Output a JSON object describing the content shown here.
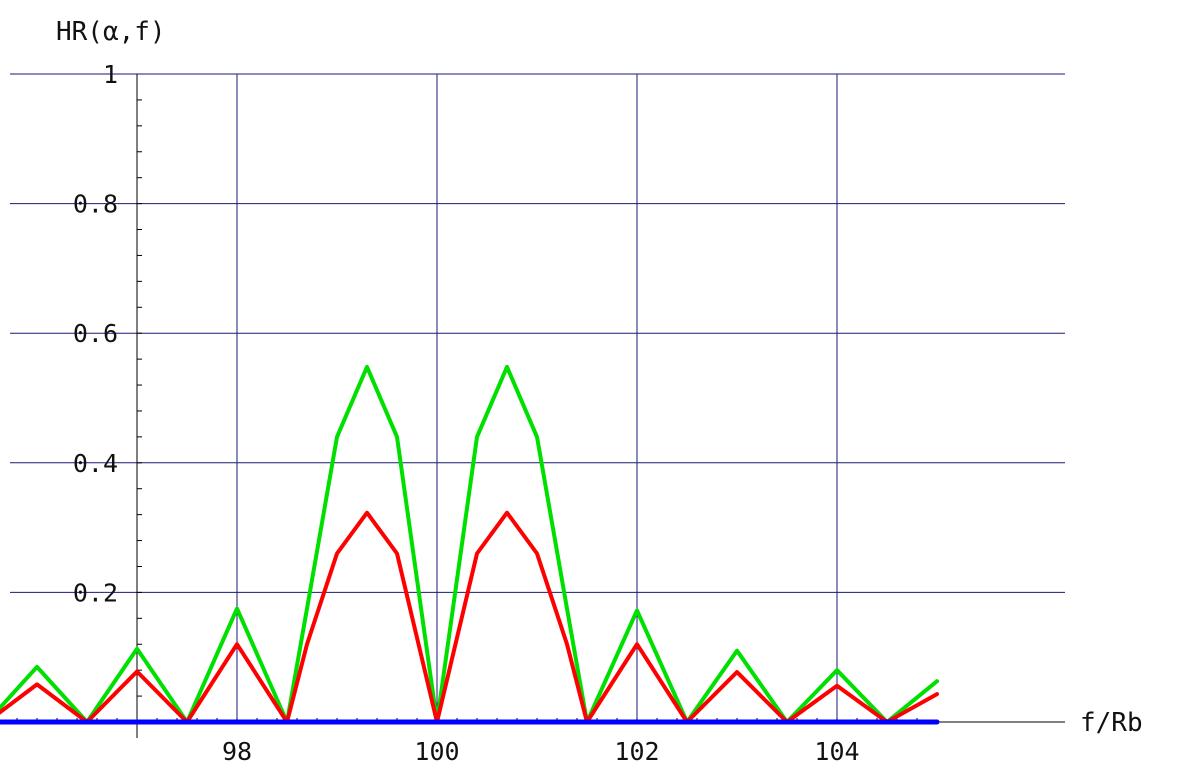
{
  "chart_data": {
    "type": "line",
    "title": "",
    "ylabel": "HR(α,f)",
    "xlabel": "f/Rb",
    "xlim": [
      96.0,
      105.0
    ],
    "ylim": [
      0,
      1
    ],
    "grid": true,
    "legend": "none",
    "x_ticks": [
      {
        "value": 98,
        "label": "98"
      },
      {
        "value": 100,
        "label": "100"
      },
      {
        "value": 102,
        "label": "102"
      },
      {
        "value": 104,
        "label": "104"
      }
    ],
    "y_ticks": [
      {
        "value": 0.2,
        "label": "0.2"
      },
      {
        "value": 0.4,
        "label": "0.4"
      },
      {
        "value": 0.6,
        "label": "0.6"
      },
      {
        "value": 0.8,
        "label": "0.8"
      },
      {
        "value": 1,
        "label": "1"
      }
    ],
    "series": [
      {
        "color": "#ff0000",
        "x": [
          95.0,
          95.5,
          96.0,
          96.5,
          97.0,
          97.5,
          98.0,
          98.5,
          98.7,
          99.0,
          99.3,
          99.6,
          100.0,
          100.4,
          100.7,
          101.0,
          101.3,
          101.5,
          102.0,
          102.5,
          103.0,
          103.5,
          104.0,
          104.5,
          105.0
        ],
        "y": [
          0.045,
          0.0,
          0.058,
          0.0,
          0.078,
          0.0,
          0.12,
          0.0,
          0.12,
          0.26,
          0.323,
          0.26,
          0.0,
          0.26,
          0.323,
          0.26,
          0.12,
          0.0,
          0.12,
          0.0,
          0.077,
          0.0,
          0.056,
          0.0,
          0.043
        ]
      },
      {
        "color": "#00e000",
        "x": [
          95.0,
          95.5,
          96.0,
          96.5,
          97.0,
          97.5,
          98.0,
          98.5,
          98.7,
          99.0,
          99.3,
          99.6,
          100.0,
          100.4,
          100.7,
          101.0,
          101.3,
          101.5,
          102.0,
          102.5,
          103.0,
          103.5,
          104.0,
          104.5,
          105.0
        ],
        "y": [
          0.065,
          0.0,
          0.085,
          0.0,
          0.113,
          0.0,
          0.175,
          0.0,
          0.175,
          0.44,
          0.548,
          0.44,
          0.0,
          0.44,
          0.548,
          0.44,
          0.175,
          0.0,
          0.172,
          0.0,
          0.11,
          0.0,
          0.08,
          0.0,
          0.063
        ]
      },
      {
        "color": "#0000ff",
        "x": [
          95.0,
          105.0
        ],
        "y": [
          0.0,
          0.0
        ]
      }
    ]
  }
}
